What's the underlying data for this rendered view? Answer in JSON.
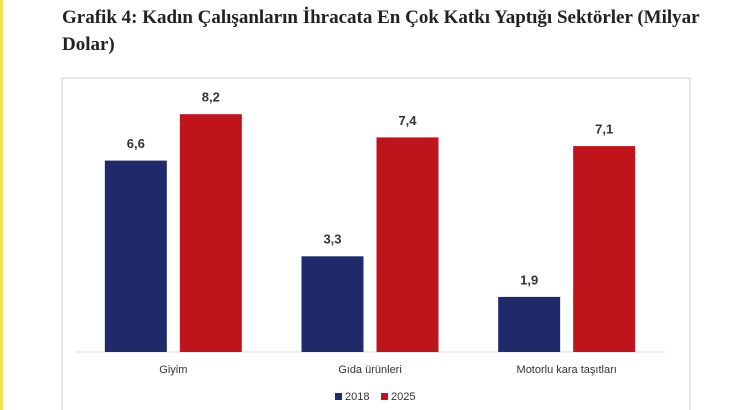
{
  "chart_data": {
    "type": "bar",
    "title": "Grafik 4: Kadın Çalışanların İhracata En Çok Katkı Yaptığı Sektörler (Milyar Dolar)",
    "categories": [
      "Giyim",
      "Gıda ürünleri",
      "Motorlu kara taşıtları"
    ],
    "series": [
      {
        "name": "2018",
        "color": "#1f2a6b",
        "values": [
          6.6,
          3.3,
          1.9
        ],
        "value_labels": [
          "6,6",
          "3,3",
          "1,9"
        ]
      },
      {
        "name": "2025",
        "color": "#c0141c",
        "values": [
          8.2,
          7.4,
          7.1
        ],
        "value_labels": [
          "8,2",
          "7,4",
          "7,1"
        ]
      }
    ],
    "legend": "bottom"
  }
}
